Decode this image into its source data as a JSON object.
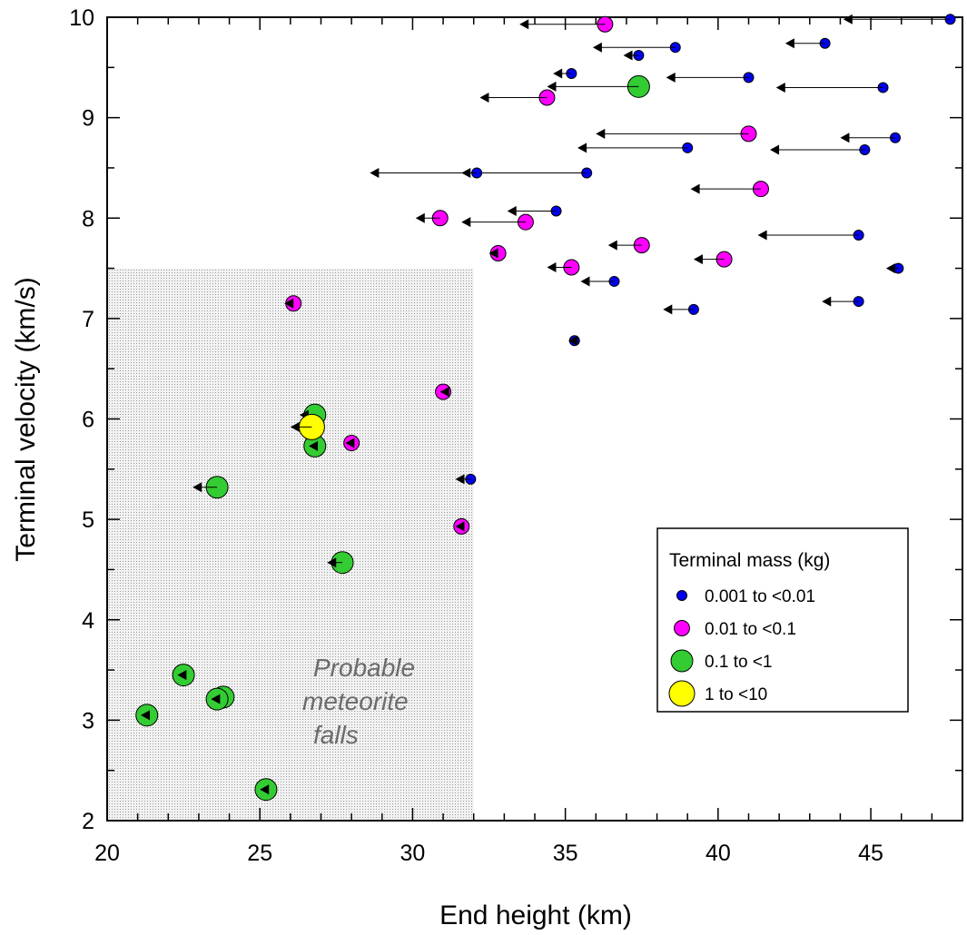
{
  "chart_data": {
    "type": "scatter",
    "xlabel": "End height (km)",
    "ylabel": "Terminal velocity (km/s)",
    "xlim": [
      20,
      48
    ],
    "ylim": [
      2,
      10
    ],
    "x_ticks": [
      20,
      25,
      30,
      35,
      40,
      45
    ],
    "y_ticks": [
      2,
      3,
      4,
      5,
      6,
      7,
      8,
      9,
      10
    ],
    "grid": false,
    "shaded_region": {
      "x": [
        20,
        32
      ],
      "y": [
        2,
        7.5
      ],
      "color": "#d0d0d0",
      "label_lines": [
        "Probable",
        "meteorite",
        "falls"
      ]
    },
    "legend": {
      "title": "Terminal mass (kg)",
      "placement": "lower-right",
      "entries": [
        {
          "name": "0.001 to <0.01",
          "color": "#0000ee"
        },
        {
          "name": "0.01 to <0.1",
          "color": "#ff00ff"
        },
        {
          "name": "0.1 to <1",
          "color": "#33cc33"
        },
        {
          "name": "1 to <10",
          "color": "#ffff00"
        }
      ]
    },
    "series": [
      {
        "name": "0.001 to <0.01",
        "color": "#0000ee",
        "points": [
          {
            "x": 47.6,
            "y": 9.98,
            "x_end": 44.1
          },
          {
            "x": 43.5,
            "y": 9.74,
            "x_end": 42.2
          },
          {
            "x": 38.6,
            "y": 9.7,
            "x_end": 35.9
          },
          {
            "x": 37.4,
            "y": 9.62,
            "x_end": 36.9
          },
          {
            "x": 35.2,
            "y": 9.44,
            "x_end": 34.6
          },
          {
            "x": 41.0,
            "y": 9.4,
            "x_end": 38.3
          },
          {
            "x": 45.4,
            "y": 9.3,
            "x_end": 41.9
          },
          {
            "x": 45.8,
            "y": 8.8,
            "x_end": 44.0
          },
          {
            "x": 39.0,
            "y": 8.7,
            "x_end": 35.4
          },
          {
            "x": 44.8,
            "y": 8.68,
            "x_end": 41.7
          },
          {
            "x": 35.7,
            "y": 8.45,
            "x_end": 28.6
          },
          {
            "x": 32.1,
            "y": 8.45,
            "x_end": 31.6
          },
          {
            "x": 34.7,
            "y": 8.07,
            "x_end": 33.1
          },
          {
            "x": 44.6,
            "y": 7.83,
            "x_end": 41.3
          },
          {
            "x": 45.9,
            "y": 7.5,
            "x_end": 45.5
          },
          {
            "x": 36.6,
            "y": 7.37,
            "x_end": 35.5
          },
          {
            "x": 44.6,
            "y": 7.17,
            "x_end": 43.4
          },
          {
            "x": 39.2,
            "y": 7.09,
            "x_end": 38.2
          },
          {
            "x": 35.3,
            "y": 6.78,
            "x_end": 35.1
          },
          {
            "x": 31.9,
            "y": 5.4,
            "x_end": 31.4
          }
        ]
      },
      {
        "name": "0.01 to <0.1",
        "color": "#ff00ff",
        "points": [
          {
            "x": 36.3,
            "y": 9.93,
            "x_end": 33.5
          },
          {
            "x": 34.4,
            "y": 9.2,
            "x_end": 32.2
          },
          {
            "x": 41.0,
            "y": 8.84,
            "x_end": 36.0
          },
          {
            "x": 41.4,
            "y": 8.29,
            "x_end": 39.1
          },
          {
            "x": 30.9,
            "y": 8.0,
            "x_end": 30.1
          },
          {
            "x": 33.7,
            "y": 7.96,
            "x_end": 31.6
          },
          {
            "x": 37.5,
            "y": 7.73,
            "x_end": 36.4
          },
          {
            "x": 32.8,
            "y": 7.65,
            "x_end": 32.5
          },
          {
            "x": 40.2,
            "y": 7.59,
            "x_end": 39.2
          },
          {
            "x": 35.2,
            "y": 7.51,
            "x_end": 34.4
          },
          {
            "x": 26.1,
            "y": 7.15,
            "x_end": 25.8
          },
          {
            "x": 31.0,
            "y": 6.27,
            "x_end": 30.9
          },
          {
            "x": 28.0,
            "y": 5.76,
            "x_end": 27.8
          },
          {
            "x": 31.6,
            "y": 4.93,
            "x_end": 31.4
          }
        ]
      },
      {
        "name": "0.1 to <1",
        "color": "#33cc33",
        "points": [
          {
            "x": 37.4,
            "y": 9.31,
            "x_end": 34.4
          },
          {
            "x": 26.8,
            "y": 6.04,
            "x_end": 26.3
          },
          {
            "x": 26.8,
            "y": 5.73,
            "x_end": 26.6
          },
          {
            "x": 23.6,
            "y": 5.32,
            "x_end": 22.8
          },
          {
            "x": 27.7,
            "y": 4.57,
            "x_end": 27.2
          },
          {
            "x": 22.5,
            "y": 3.45,
            "x_end": 22.3
          },
          {
            "x": 23.8,
            "y": 3.23,
            "x_end": 23.4
          },
          {
            "x": 23.6,
            "y": 3.21,
            "x_end": 23.4
          },
          {
            "x": 21.3,
            "y": 3.05,
            "x_end": 21.1
          },
          {
            "x": 25.2,
            "y": 2.31,
            "x_end": 25.0
          }
        ]
      },
      {
        "name": "1 to <10",
        "color": "#ffff00",
        "points": [
          {
            "x": 26.7,
            "y": 5.92,
            "x_end": 26.0
          }
        ]
      }
    ]
  }
}
